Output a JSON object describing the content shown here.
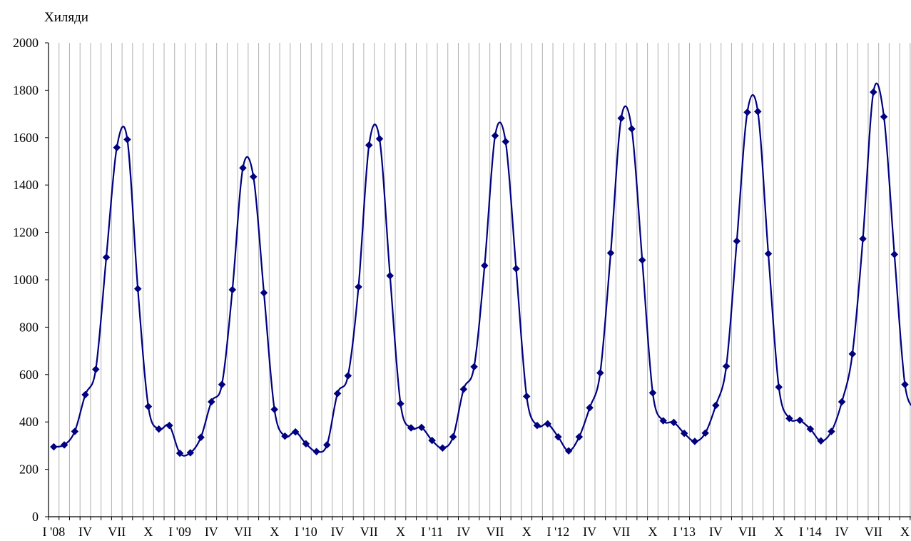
{
  "chart_data": {
    "type": "line",
    "ylabel": "Хиляди",
    "ylim": [
      0,
      2000
    ],
    "yticks": [
      0,
      200,
      400,
      600,
      800,
      1000,
      1200,
      1400,
      1600,
      1800,
      2000
    ],
    "vertical_grid": true,
    "horizontal_grid": false,
    "line_color": "#000080",
    "grid_color": "#b0b0b0",
    "x_tick_labels": [
      {
        "index": 0,
        "label": "I '08"
      },
      {
        "index": 3,
        "label": "IV"
      },
      {
        "index": 6,
        "label": "VII"
      },
      {
        "index": 9,
        "label": "X"
      },
      {
        "index": 12,
        "label": "I '09"
      },
      {
        "index": 15,
        "label": "IV"
      },
      {
        "index": 18,
        "label": "VII"
      },
      {
        "index": 21,
        "label": "X"
      },
      {
        "index": 24,
        "label": "I '10"
      },
      {
        "index": 27,
        "label": "IV"
      },
      {
        "index": 30,
        "label": "VII"
      },
      {
        "index": 33,
        "label": "X"
      },
      {
        "index": 36,
        "label": "I '11"
      },
      {
        "index": 39,
        "label": "IV"
      },
      {
        "index": 42,
        "label": "VII"
      },
      {
        "index": 45,
        "label": "X"
      },
      {
        "index": 48,
        "label": "I '12"
      },
      {
        "index": 51,
        "label": "IV"
      },
      {
        "index": 54,
        "label": "VII"
      },
      {
        "index": 57,
        "label": "X"
      },
      {
        "index": 60,
        "label": "I '13"
      },
      {
        "index": 63,
        "label": "IV"
      },
      {
        "index": 66,
        "label": "VII"
      },
      {
        "index": 69,
        "label": "X"
      },
      {
        "index": 72,
        "label": "I '14"
      },
      {
        "index": 75,
        "label": "IV"
      },
      {
        "index": 78,
        "label": "VII"
      },
      {
        "index": 81,
        "label": "X"
      }
    ],
    "series": [
      {
        "values": [
          295,
          303,
          360,
          515,
          622,
          1095,
          1558,
          1592,
          962,
          465,
          370,
          385,
          268,
          270,
          335,
          485,
          558,
          958,
          1472,
          1435,
          945,
          453,
          340,
          358,
          308,
          275,
          303,
          520,
          595,
          970,
          1568,
          1595,
          1017,
          477,
          375,
          377,
          322,
          290,
          337,
          538,
          633,
          1060,
          1608,
          1583,
          1047,
          508,
          385,
          392,
          337,
          278,
          337,
          460,
          607,
          1113,
          1682,
          1637,
          1083,
          523,
          405,
          398,
          352,
          318,
          353,
          470,
          635,
          1163,
          1707,
          1710,
          1110,
          547,
          415,
          407,
          370,
          320,
          360,
          485,
          687,
          1173,
          1792,
          1688,
          1107,
          558,
          455
        ]
      }
    ]
  }
}
